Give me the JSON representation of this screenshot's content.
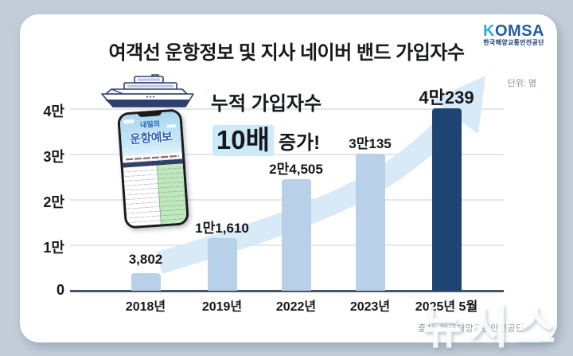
{
  "header": {
    "title": "여객선 운항정보 및 지사 네이버 밴드 가입자수",
    "logo": {
      "first_letter": "K",
      "rest": "OMSA",
      "subtitle": "한국해양교통안전공단"
    },
    "unit_label": "단위: 명"
  },
  "callout": {
    "line1": "누적 가입자수",
    "highlight": "10배",
    "line2_rest": "증가!"
  },
  "phone": {
    "screen_line1": "내일의",
    "screen_line2": "운항예보"
  },
  "chart_data": {
    "type": "bar",
    "title": "여객선 운항정보 및 지사 네이버 밴드 가입자수",
    "unit": "명",
    "categories": [
      "2018년",
      "2019년",
      "2022년",
      "2023년",
      "2025년 5월"
    ],
    "values": [
      3802,
      11610,
      24505,
      30135,
      40239
    ],
    "value_labels": [
      "3,802",
      "1만1,610",
      "2만4,505",
      "3만135",
      "4만239"
    ],
    "y_ticks": [
      {
        "value": 0,
        "label": "0"
      },
      {
        "value": 10000,
        "label": "1만"
      },
      {
        "value": 20000,
        "label": "2만"
      },
      {
        "value": 30000,
        "label": "3만"
      },
      {
        "value": 40000,
        "label": "4만"
      }
    ],
    "ylim": [
      0,
      42000
    ],
    "grid": true,
    "legend": "none",
    "bar_colors": [
      "#b8d1e9",
      "#b8d1e9",
      "#b8d1e9",
      "#b8d1e9",
      "#1d4472"
    ],
    "accent_arrow_color": "#d8e9f8",
    "annotation": "누적 가입자수 10배 증가!"
  },
  "footer": {
    "source": "출처: 한국해양교통안전공단"
  },
  "watermark": "뉴시스"
}
